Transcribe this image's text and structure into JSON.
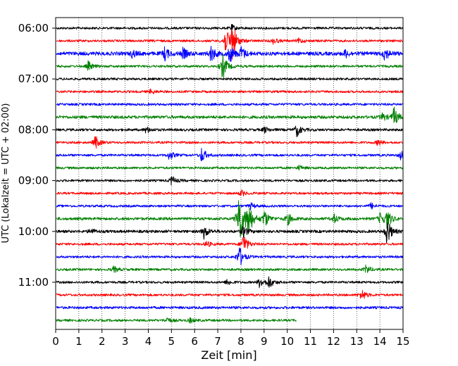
{
  "chart_data": {
    "type": "line",
    "title": "",
    "xlabel": "Zeit  [min]",
    "ylabel": "UTC (Lokalzeit = UTC + 02:00)",
    "xlim": [
      0,
      15
    ],
    "x_ticks": [
      0,
      1,
      2,
      3,
      4,
      5,
      6,
      7,
      8,
      9,
      10,
      11,
      12,
      13,
      14,
      15
    ],
    "x_tick_labels": [
      "0",
      "1",
      "2",
      "3",
      "4",
      "5",
      "6",
      "7",
      "8",
      "9",
      "10",
      "11",
      "12",
      "13",
      "14",
      "15"
    ],
    "y_tick_labels": [
      "06:00",
      "07:00",
      "08:00",
      "09:00",
      "10:00",
      "11:00"
    ],
    "y_tick_rows": [
      0,
      4,
      8,
      12,
      16,
      20
    ],
    "grid": "vertical dotted",
    "row_colors": [
      "#000000",
      "#ff0000",
      "#0000ff",
      "#008000"
    ],
    "rows": [
      {
        "time": "06:00",
        "color": "#000000",
        "end_min": 15,
        "amp": 1.0,
        "events": [
          {
            "t": 7.6,
            "a": 2.0
          }
        ]
      },
      {
        "time": "06:15",
        "color": "#ff0000",
        "end_min": 15,
        "amp": 1.0,
        "events": [
          {
            "t": 7.3,
            "a": 8.0
          },
          {
            "t": 7.6,
            "a": 14.0
          },
          {
            "t": 9.4,
            "a": 2.0
          },
          {
            "t": 10.5,
            "a": 1.5
          }
        ]
      },
      {
        "time": "06:30",
        "color": "#0000ff",
        "end_min": 15,
        "amp": 1.6,
        "events": [
          {
            "t": 3.3,
            "a": 2.5
          },
          {
            "t": 4.7,
            "a": 4.5
          },
          {
            "t": 5.5,
            "a": 3.5
          },
          {
            "t": 6.7,
            "a": 5.5
          },
          {
            "t": 7.5,
            "a": 6.0
          },
          {
            "t": 8.0,
            "a": 4.5
          },
          {
            "t": 12.5,
            "a": 2.5
          },
          {
            "t": 14.2,
            "a": 4.5
          }
        ]
      },
      {
        "time": "06:45",
        "color": "#008000",
        "end_min": 15,
        "amp": 1.0,
        "events": [
          {
            "t": 1.4,
            "a": 3.0
          },
          {
            "t": 7.2,
            "a": 9.0
          }
        ]
      },
      {
        "time": "07:00",
        "color": "#000000",
        "end_min": 15,
        "amp": 1.0,
        "events": []
      },
      {
        "time": "07:15",
        "color": "#ff0000",
        "end_min": 15,
        "amp": 1.0,
        "events": [
          {
            "t": 4.1,
            "a": 1.5
          }
        ]
      },
      {
        "time": "07:30",
        "color": "#0000ff",
        "end_min": 15,
        "amp": 1.0,
        "events": []
      },
      {
        "time": "07:45",
        "color": "#008000",
        "end_min": 15,
        "amp": 1.3,
        "events": [
          {
            "t": 14.1,
            "a": 2.5
          },
          {
            "t": 14.6,
            "a": 6.0
          }
        ]
      },
      {
        "time": "08:00",
        "color": "#000000",
        "end_min": 15,
        "amp": 1.1,
        "events": [
          {
            "t": 3.9,
            "a": 2.0
          },
          {
            "t": 9.0,
            "a": 2.0
          },
          {
            "t": 10.4,
            "a": 4.5
          }
        ]
      },
      {
        "time": "08:15",
        "color": "#ff0000",
        "end_min": 15,
        "amp": 1.0,
        "events": [
          {
            "t": 1.7,
            "a": 4.5
          },
          {
            "t": 13.9,
            "a": 2.0
          }
        ]
      },
      {
        "time": "08:30",
        "color": "#0000ff",
        "end_min": 15,
        "amp": 1.0,
        "events": [
          {
            "t": 4.9,
            "a": 3.0
          },
          {
            "t": 6.3,
            "a": 5.0
          },
          {
            "t": 14.9,
            "a": 3.0
          }
        ]
      },
      {
        "time": "08:45",
        "color": "#008000",
        "end_min": 15,
        "amp": 1.0,
        "events": [
          {
            "t": 10.5,
            "a": 1.5
          }
        ]
      },
      {
        "time": "09:00",
        "color": "#000000",
        "end_min": 15,
        "amp": 1.0,
        "events": [
          {
            "t": 5.0,
            "a": 3.0
          }
        ]
      },
      {
        "time": "09:15",
        "color": "#ff0000",
        "end_min": 15,
        "amp": 1.0,
        "events": [
          {
            "t": 8.0,
            "a": 2.0
          }
        ]
      },
      {
        "time": "09:30",
        "color": "#0000ff",
        "end_min": 15,
        "amp": 1.0,
        "events": [
          {
            "t": 8.4,
            "a": 2.0
          },
          {
            "t": 13.6,
            "a": 2.0
          }
        ]
      },
      {
        "time": "09:45",
        "color": "#008000",
        "end_min": 15,
        "amp": 1.2,
        "events": [
          {
            "t": 7.9,
            "a": 22.0
          },
          {
            "t": 8.3,
            "a": 12.0
          },
          {
            "t": 9.0,
            "a": 6.0
          },
          {
            "t": 10.0,
            "a": 4.0
          },
          {
            "t": 12.0,
            "a": 3.0
          },
          {
            "t": 14.0,
            "a": 3.5
          },
          {
            "t": 14.3,
            "a": 6.0
          }
        ]
      },
      {
        "time": "10:00",
        "color": "#000000",
        "end_min": 15,
        "amp": 1.2,
        "events": [
          {
            "t": 1.5,
            "a": 2.0
          },
          {
            "t": 6.4,
            "a": 4.5
          },
          {
            "t": 8.1,
            "a": 4.0
          },
          {
            "t": 14.3,
            "a": 9.0
          }
        ]
      },
      {
        "time": "10:15",
        "color": "#ff0000",
        "end_min": 15,
        "amp": 1.0,
        "events": [
          {
            "t": 6.5,
            "a": 2.0
          },
          {
            "t": 8.1,
            "a": 7.0
          }
        ]
      },
      {
        "time": "10:30",
        "color": "#0000ff",
        "end_min": 15,
        "amp": 1.0,
        "events": [
          {
            "t": 7.9,
            "a": 8.0
          }
        ]
      },
      {
        "time": "10:45",
        "color": "#008000",
        "end_min": 15,
        "amp": 1.0,
        "events": [
          {
            "t": 2.5,
            "a": 2.0
          },
          {
            "t": 13.4,
            "a": 3.0
          }
        ]
      },
      {
        "time": "11:00",
        "color": "#000000",
        "end_min": 15,
        "amp": 1.0,
        "events": [
          {
            "t": 7.4,
            "a": 2.0
          },
          {
            "t": 8.8,
            "a": 3.5
          },
          {
            "t": 9.2,
            "a": 4.0
          }
        ]
      },
      {
        "time": "11:15",
        "color": "#ff0000",
        "end_min": 15,
        "amp": 1.0,
        "events": [
          {
            "t": 13.2,
            "a": 4.0
          }
        ]
      },
      {
        "time": "11:30",
        "color": "#0000ff",
        "end_min": 15,
        "amp": 1.1,
        "events": []
      },
      {
        "time": "11:45",
        "color": "#008000",
        "end_min": 10.4,
        "amp": 1.0,
        "events": [
          {
            "t": 4.8,
            "a": 2.0
          },
          {
            "t": 5.8,
            "a": 1.5
          }
        ]
      }
    ]
  }
}
